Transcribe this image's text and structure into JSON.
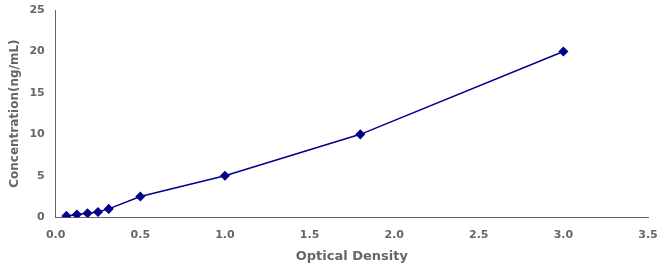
{
  "chart_data": {
    "type": "line",
    "x": [
      0.063,
      0.125,
      0.188,
      0.25,
      0.313,
      0.5,
      1.0,
      1.8,
      3.0
    ],
    "series": [
      {
        "values": [
          0.156,
          0.313,
          0.469,
          0.625,
          1.0,
          2.5,
          5.0,
          10.0,
          20.0
        ],
        "color": "#00008B",
        "marker": "diamond",
        "line_style": "solid"
      }
    ],
    "xlabel": "Optical Density",
    "ylabel": "Concentration(ng/mL)",
    "xlim": [
      0,
      3.5
    ],
    "ylim": [
      0,
      25
    ],
    "xticks": [
      {
        "value": 0,
        "label": "0.0"
      },
      0.5,
      {
        "value": 1,
        "label": "1.0"
      },
      1.5,
      {
        "value": 2,
        "label": "2.0"
      },
      2.5,
      {
        "value": 3,
        "label": "3.0"
      },
      3.5
    ],
    "yticks": [
      0,
      5,
      10,
      15,
      20,
      25
    ],
    "grid": false
  }
}
